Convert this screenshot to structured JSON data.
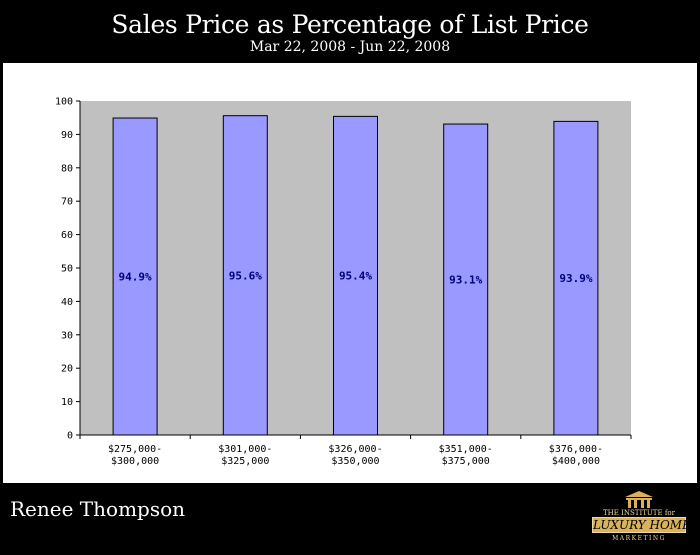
{
  "header": {
    "title": "Sales Price as Percentage of List Price",
    "subtitle": "Mar 22, 2008 - Jun 22, 2008"
  },
  "footer": {
    "agent_name": "Renee Thompson",
    "logo": {
      "line1": "THE INSTITUTE for",
      "line2": "LUXURY HOME",
      "line3": "MARKETING"
    }
  },
  "colors": {
    "plot_background": "#c0c0c0",
    "bar_fill": "#9999ff",
    "bar_stroke": "#000000",
    "data_label": "#00007f"
  },
  "chart_data": {
    "type": "bar",
    "title": "Sales Price as Percentage of List Price",
    "subtitle": "Mar 22, 2008 - Jun 22, 2008",
    "categories": [
      [
        "$275,000-",
        "$300,000"
      ],
      [
        "$301,000-",
        "$325,000"
      ],
      [
        "$326,000-",
        "$350,000"
      ],
      [
        "$351,000-",
        "$375,000"
      ],
      [
        "$376,000-",
        "$400,000"
      ]
    ],
    "values": [
      94.9,
      95.6,
      95.4,
      93.1,
      93.9
    ],
    "data_labels": [
      "94.9%",
      "95.6%",
      "95.4%",
      "93.1%",
      "93.9%"
    ],
    "yticks": [
      0,
      10,
      20,
      30,
      40,
      50,
      60,
      70,
      80,
      90,
      100
    ],
    "ylim": [
      0,
      100
    ],
    "xlabel": "",
    "ylabel": "",
    "grid": false,
    "legend": "none"
  }
}
